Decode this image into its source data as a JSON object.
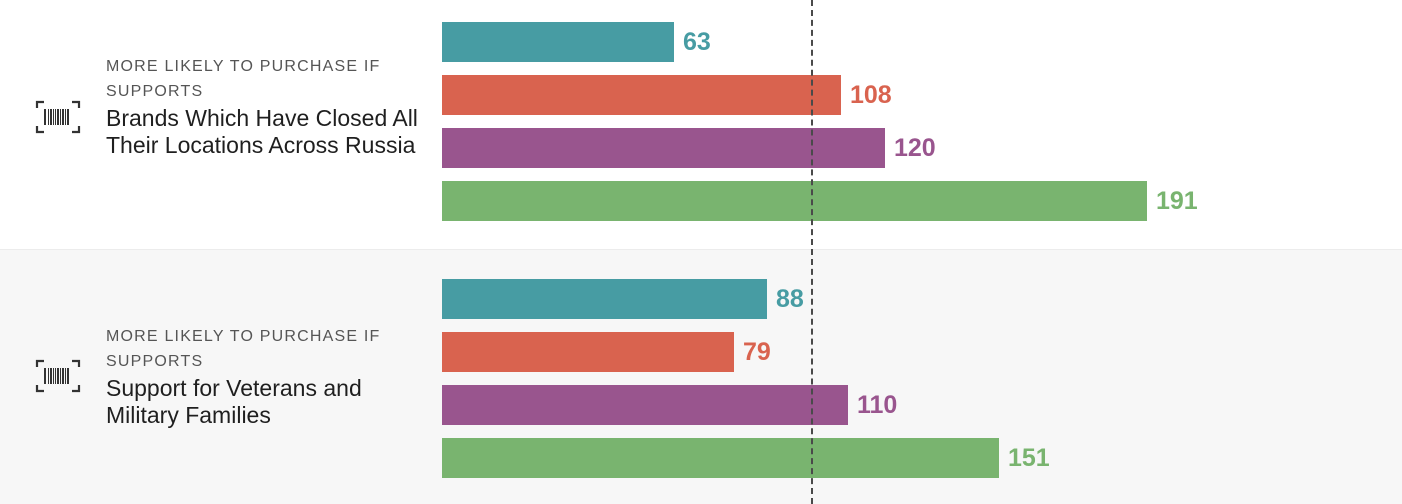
{
  "colors": {
    "series": [
      "#479ca3",
      "#d9634f",
      "#99558e",
      "#79b46f"
    ],
    "icon": "#333333",
    "reference_line": "#4a4a4a"
  },
  "chart_data": {
    "type": "bar",
    "orientation": "horizontal",
    "reference_value": 100,
    "xlim": [
      0,
      200
    ],
    "grid": false,
    "legend": "none",
    "groups": [
      {
        "icon": "barcode-icon",
        "kicker": "MORE LIKELY TO PURCHASE IF SUPPORTS",
        "topic": "Brands Which Have Closed All Their Locations Across Russia",
        "values": [
          63,
          108,
          120,
          191
        ]
      },
      {
        "icon": "barcode-icon",
        "kicker": "MORE LIKELY TO PURCHASE IF SUPPORTS",
        "topic": "Support for Veterans and Military Families",
        "values": [
          88,
          79,
          110,
          151
        ]
      }
    ]
  }
}
